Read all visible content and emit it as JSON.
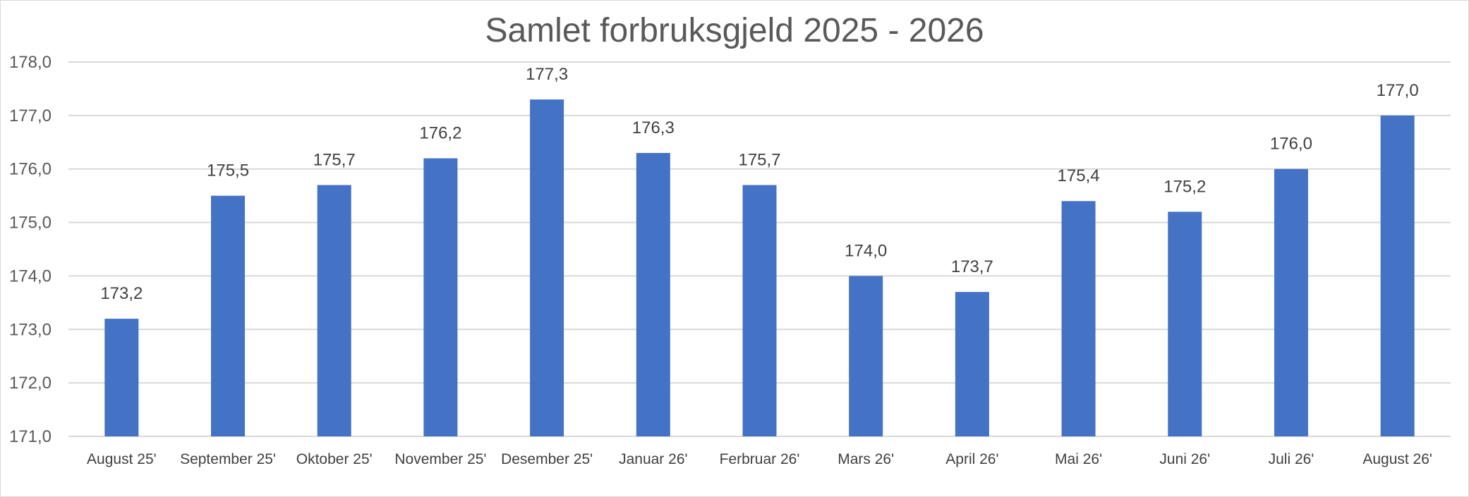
{
  "chart_data": {
    "type": "bar",
    "title": "Samlet forbruksgjeld 2025 - 2026",
    "xlabel": "",
    "ylabel": "",
    "ylim": [
      171.0,
      178.0
    ],
    "yticks": [
      "171,0",
      "172,0",
      "173,0",
      "174,0",
      "175,0",
      "176,0",
      "177,0",
      "178,0"
    ],
    "grid": true,
    "legend": "none",
    "bar_color": "#4472c4",
    "categories": [
      "August 25'",
      "September 25'",
      "Oktober 25'",
      "November 25'",
      "Desember 25'",
      "Januar 26'",
      "Ferbruar 26'",
      "Mars 26'",
      "April 26'",
      "Mai 26'",
      "Juni 26'",
      "Juli 26'",
      "August 26'"
    ],
    "values": [
      173.2,
      175.5,
      175.7,
      176.2,
      177.3,
      176.3,
      175.7,
      174.0,
      173.7,
      175.4,
      175.2,
      176.0,
      177.0
    ],
    "data_labels": [
      "173,2",
      "175,5",
      "175,7",
      "176,2",
      "177,3",
      "176,3",
      "175,7",
      "174,0",
      "173,7",
      "175,4",
      "175,2",
      "176,0",
      "177,0"
    ]
  }
}
